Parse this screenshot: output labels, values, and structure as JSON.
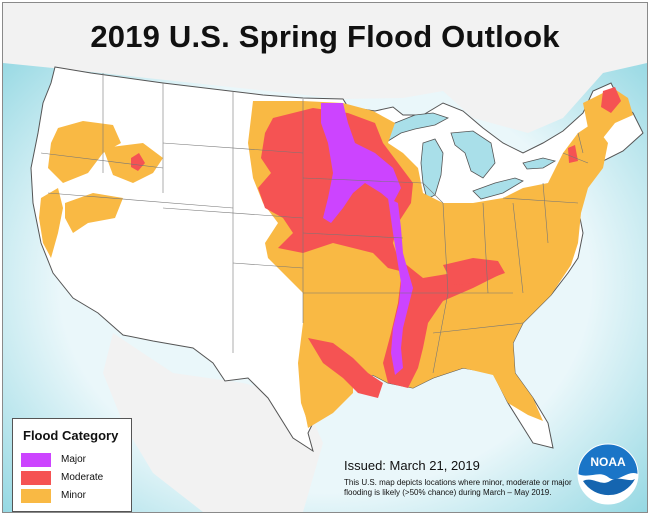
{
  "title": "2019 U.S. Spring Flood Outlook",
  "legend": {
    "title": "Flood Category",
    "items": [
      {
        "label": "Major",
        "color": "#cc44ff"
      },
      {
        "label": "Moderate",
        "color": "#f55353"
      },
      {
        "label": "Minor",
        "color": "#f9b944"
      }
    ]
  },
  "issued": "Issued:  March 21, 2019",
  "note": "This U.S. map depicts locations where minor, moderate or major flooding is likely (>50% chance) during March – May 2019.",
  "logo": {
    "text": "NOAA",
    "icon": "noaa-logo-icon"
  },
  "colors": {
    "ocean": "#8fd6e2",
    "land": "#ffffff",
    "lakes": "#a9dfe9",
    "major": "#cc44ff",
    "moderate": "#f55353",
    "minor": "#f9b944"
  }
}
